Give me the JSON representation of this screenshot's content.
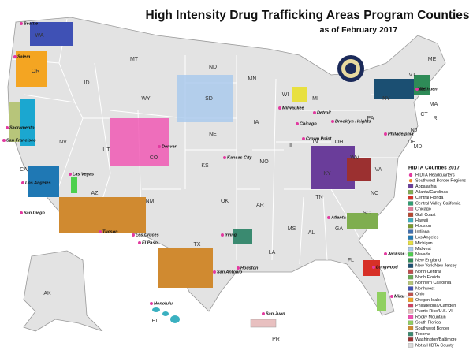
{
  "header": {
    "title": "High Intensity Drug Trafficking Areas Program Counties",
    "subtitle": "as of February 2017"
  },
  "legend": {
    "title": "HIDTA Counties 2017",
    "markers": [
      {
        "label": "HIDTA Headquarters",
        "color": "#e23aa0"
      },
      {
        "label": "Southwest Border Regions",
        "color": "#f08a24"
      }
    ],
    "items": [
      {
        "label": "Appalachia",
        "color": "#6a3d9a"
      },
      {
        "label": "Atlanta/Carolinas",
        "color": "#7fae4f"
      },
      {
        "label": "Central Florida",
        "color": "#d73027"
      },
      {
        "label": "Central Valley California",
        "color": "#2f9e73"
      },
      {
        "label": "Chicago",
        "color": "#e07b9a"
      },
      {
        "label": "Gulf Coast",
        "color": "#b8462d"
      },
      {
        "label": "Hawaii",
        "color": "#3ab0c0"
      },
      {
        "label": "Houston",
        "color": "#7a9a2a"
      },
      {
        "label": "Indiana",
        "color": "#3e6fb0"
      },
      {
        "label": "Los Angeles",
        "color": "#1f78b4"
      },
      {
        "label": "Michigan",
        "color": "#e8e040"
      },
      {
        "label": "Midwest",
        "color": "#a6c8ec"
      },
      {
        "label": "Nevada",
        "color": "#4dd04d"
      },
      {
        "label": "New England",
        "color": "#2e8b57"
      },
      {
        "label": "New York/New Jersey",
        "color": "#1b4f72"
      },
      {
        "label": "North Central",
        "color": "#c04c4c"
      },
      {
        "label": "North Florida",
        "color": "#66aa55"
      },
      {
        "label": "Northern California",
        "color": "#b7c57a"
      },
      {
        "label": "Northwest",
        "color": "#3f51b5"
      },
      {
        "label": "Ohio",
        "color": "#c0504d"
      },
      {
        "label": "Oregon-Idaho",
        "color": "#f4a522"
      },
      {
        "label": "Philadelphia/Camden",
        "color": "#d04060"
      },
      {
        "label": "Puerto Rico/U.S. VI",
        "color": "#e8c0c0"
      },
      {
        "label": "Rocky Mountain",
        "color": "#f050b0"
      },
      {
        "label": "South Florida",
        "color": "#90d060"
      },
      {
        "label": "Southwest Border",
        "color": "#d08a30"
      },
      {
        "label": "Texoma",
        "color": "#3a8a70"
      },
      {
        "label": "Washington/Baltimore",
        "color": "#9b3030"
      },
      {
        "label": "Not a HIDTA County",
        "color": "#dcdcdc"
      }
    ]
  },
  "cities": [
    "Seattle",
    "Salem",
    "Sacramento",
    "San Francisco",
    "Las Vegas",
    "Los Angeles",
    "San Diego",
    "Tucson",
    "Las Cruces",
    "El Paso",
    "Denver",
    "Kansas City",
    "Irving",
    "Houston",
    "San Antonio",
    "Milwaukee",
    "Chicago",
    "Detroit",
    "Crown Point",
    "Brooklyn Heights",
    "Philadelphia",
    "Methuen",
    "Atlanta",
    "Jacksonville",
    "Longwood",
    "Miramar",
    "Honolulu",
    "San Juan"
  ],
  "states": [
    "WA",
    "OR",
    "ID",
    "MT",
    "WY",
    "NV",
    "UT",
    "CO",
    "CA",
    "AZ",
    "NM",
    "ND",
    "SD",
    "NE",
    "KS",
    "OK",
    "TX",
    "MN",
    "IA",
    "MO",
    "AR",
    "LA",
    "WI",
    "IL",
    "MS",
    "MI",
    "IN",
    "KY",
    "TN",
    "AL",
    "GA",
    "FL",
    "SC",
    "NC",
    "VA",
    "WV",
    "OH",
    "PA",
    "NY",
    "VT",
    "NH",
    "ME",
    "MA",
    "CT",
    "RI",
    "NJ",
    "DE",
    "MD",
    "AK",
    "HI",
    "PR"
  ]
}
